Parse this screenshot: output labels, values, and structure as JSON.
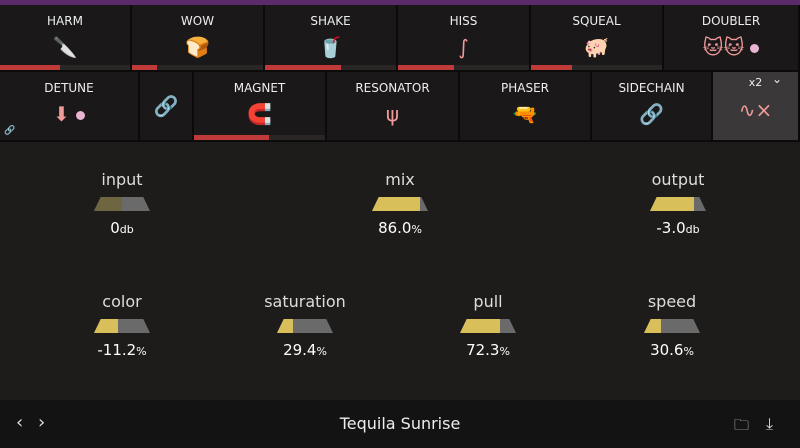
{
  "row1": [
    {
      "label": "HARM",
      "icon": "knife-icon",
      "glyph": "🔪",
      "level": 0.46
    },
    {
      "label": "WOW",
      "icon": "toast-icon",
      "glyph": "🍞",
      "level": 0.19
    },
    {
      "label": "SHAKE",
      "icon": "shaker-icon",
      "glyph": "🥤",
      "level": 0.58
    },
    {
      "label": "HISS",
      "icon": "snake-icon",
      "glyph": "∫",
      "level": 0.43
    },
    {
      "label": "SQUEAL",
      "icon": "pig-icon",
      "glyph": "🐖",
      "level": 0.31
    },
    {
      "label": "DOUBLER",
      "icon": "cats-icon",
      "glyph": "🐱🐱",
      "level": 0
    }
  ],
  "row2": [
    {
      "label": "DETUNE",
      "icon": "detune-icon",
      "glyph": "⬇",
      "level": 0
    },
    {
      "label": "",
      "icon": "link-icon",
      "glyph": "🔗",
      "level": 0
    },
    {
      "label": "MAGNET",
      "icon": "magnet-icon",
      "glyph": "🧲",
      "level": 0.57
    },
    {
      "label": "RESONATOR",
      "icon": "tuning-fork-icon",
      "glyph": "ψ",
      "level": 0
    },
    {
      "label": "PHASER",
      "icon": "raygun-icon",
      "glyph": "🔫",
      "level": 0
    },
    {
      "label": "SIDECHAIN",
      "icon": "link-icon",
      "glyph": "🔗",
      "level": 0
    },
    {
      "label": "x2",
      "icon": "wave-x-icon",
      "glyph": "∿×",
      "level": 0
    }
  ],
  "knobs": [
    {
      "name": "input",
      "value": "0",
      "unit": "db",
      "fill": 0.5,
      "dim": true
    },
    {
      "name": "mix",
      "value": "86.0",
      "unit": "%",
      "fill": 0.86
    },
    {
      "name": "output",
      "value": "-3.0",
      "unit": "db",
      "fill": 0.78
    },
    {
      "name": "color",
      "value": "-11.2",
      "unit": "%",
      "fill": 0.42
    },
    {
      "name": "saturation",
      "value": "29.4",
      "unit": "%",
      "fill": 0.29
    },
    {
      "name": "pull",
      "value": "72.3",
      "unit": "%",
      "fill": 0.72
    },
    {
      "name": "speed",
      "value": "30.6",
      "unit": "%",
      "fill": 0.31
    }
  ],
  "footer": {
    "preset": "Tequila Sunrise",
    "prev": "‹",
    "next": "›"
  },
  "colors": {
    "accent": "#f09a9a",
    "bar": "#c03a3a",
    "knob": "#d9bf5a",
    "strip": "#5b2a6b"
  }
}
